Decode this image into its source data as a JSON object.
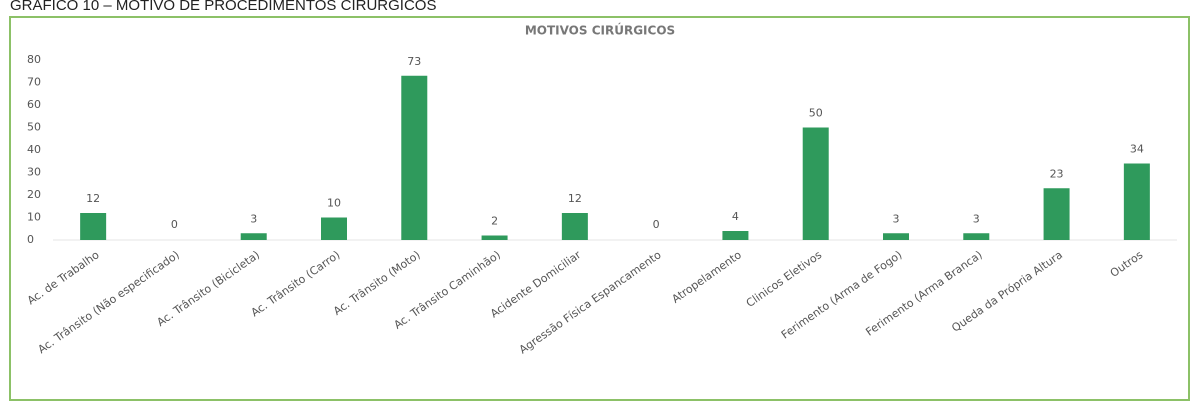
{
  "heading": "GRÁFICO 10 – MOTIVO DE PROCEDIMENTOS CIRÚRGICOS",
  "chart_data": {
    "type": "bar",
    "title": "MOTIVOS CIRÚRGICOS",
    "categories": [
      "Ac. de Trabalho",
      "Ac. Trânsito (Não especificado)",
      "Ac. Trânsito (Bicicleta)",
      "Ac. Trânsito (Carro)",
      "Ac. Trânsito (Moto)",
      "Ac. Trânsito Caminhão)",
      "Acidente Domiciliar",
      "Agressão Física Espancamento",
      "Atropelamento",
      "Clinicos Eletivos",
      "Ferimento (Arma de Fogo)",
      "Ferimento  (Arma Branca)",
      "Queda da Própria Altura",
      "Outros"
    ],
    "values": [
      12,
      0,
      3,
      10,
      73,
      2,
      12,
      0,
      4,
      50,
      3,
      3,
      23,
      34
    ],
    "color": "#2f9a5c",
    "ylim": [
      0,
      80
    ],
    "yticks": [
      0,
      10,
      20,
      30,
      40,
      50,
      60,
      70,
      80
    ],
    "grid": false
  }
}
